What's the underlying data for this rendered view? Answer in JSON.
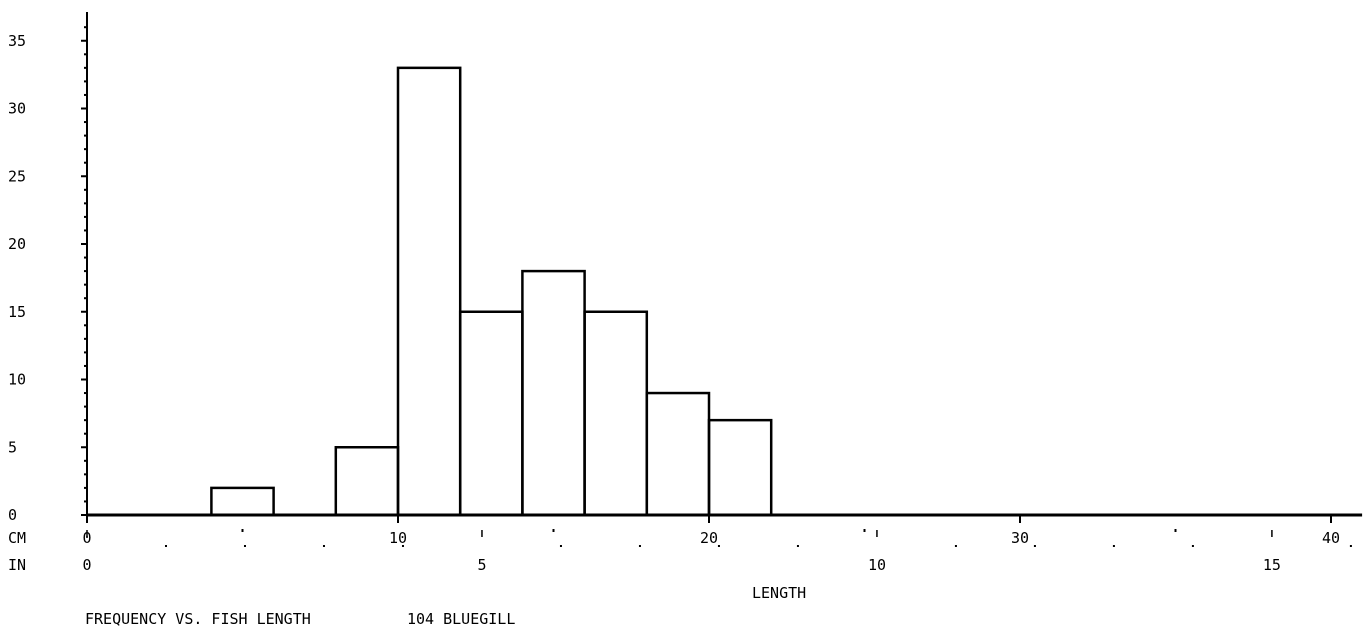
{
  "chart_data": {
    "type": "bar",
    "title": "FREQUENCY VS. FISH LENGTH",
    "subtitle": "104 BLUEGILL",
    "xlabel": "LENGTH",
    "ylabel": "",
    "x_unit_rows": [
      {
        "unit": "CM",
        "ticks": [
          "0",
          "10",
          "20",
          "30",
          "40"
        ]
      },
      {
        "unit": "IN",
        "ticks": [
          "0",
          "5",
          "10",
          "15"
        ]
      }
    ],
    "yticks": [
      "0",
      "5",
      "10",
      "15",
      "20",
      "25",
      "30",
      "35"
    ],
    "xlim_cm": [
      0,
      41
    ],
    "ylim": [
      0,
      37
    ],
    "bin_width_cm": 2,
    "bins": [
      {
        "x0": 4,
        "x1": 6,
        "value": 2
      },
      {
        "x0": 8,
        "x1": 10,
        "value": 5
      },
      {
        "x0": 10,
        "x1": 12,
        "value": 33
      },
      {
        "x0": 12,
        "x1": 14,
        "value": 15
      },
      {
        "x0": 14,
        "x1": 16,
        "value": 18
      },
      {
        "x0": 16,
        "x1": 18,
        "value": 15
      },
      {
        "x0": 18,
        "x1": 20,
        "value": 9
      },
      {
        "x0": 20,
        "x1": 22,
        "value": 7
      }
    ]
  }
}
